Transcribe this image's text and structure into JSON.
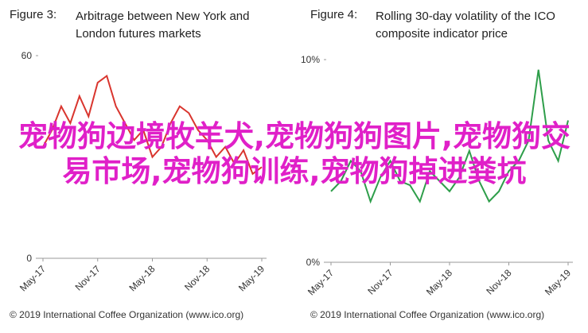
{
  "chart_data": [
    {
      "type": "line",
      "figure_label": "Figure 3:",
      "title": "Arbitrage between New York and London futures markets",
      "categories": [
        "May-17",
        null,
        null,
        null,
        null,
        null,
        "Nov-17",
        null,
        null,
        null,
        null,
        null,
        "May-18",
        null,
        null,
        null,
        null,
        null,
        "Nov-18",
        null,
        null,
        null,
        null,
        null,
        "May-19"
      ],
      "values": [
        33,
        38,
        45,
        40,
        48,
        42,
        52,
        54,
        45,
        40,
        35,
        38,
        30,
        33,
        40,
        45,
        43,
        38,
        35,
        30,
        33,
        28,
        32,
        25,
        27
      ],
      "color": "#d9352e",
      "ylim": [
        0,
        60
      ],
      "yticks": [
        0,
        60
      ],
      "source": "© 2019 International Coffee Organization (www.ico.org)"
    },
    {
      "type": "line",
      "figure_label": "Figure 4:",
      "title": "Rolling 30-day volatility of the ICO composite indicator price",
      "categories": [
        "May-17",
        null,
        null,
        null,
        null,
        null,
        "Nov-17",
        null,
        null,
        null,
        null,
        null,
        "May-18",
        null,
        null,
        null,
        null,
        null,
        "Nov-18",
        null,
        null,
        null,
        null,
        null,
        "May-19"
      ],
      "values": [
        3.5,
        4,
        5,
        4.5,
        3,
        4.2,
        5,
        4,
        3.8,
        3,
        4.5,
        4,
        3.5,
        4.2,
        5.5,
        4,
        3,
        3.5,
        4.5,
        5,
        6,
        9.5,
        6,
        5,
        7
      ],
      "color": "#2e9e4a",
      "ylim": [
        0,
        10
      ],
      "yticks": [
        {
          "value": 0,
          "label": "0%"
        },
        {
          "value": 10,
          "label": "10%"
        }
      ],
      "source": "© 2019 International Coffee Organization (www.ico.org)"
    }
  ],
  "overlay_text": "宠物狗边境牧羊犬,宠物狗狗图片,宠物狗交易市场,宠物狗训练,宠物狗掉进粪坑"
}
